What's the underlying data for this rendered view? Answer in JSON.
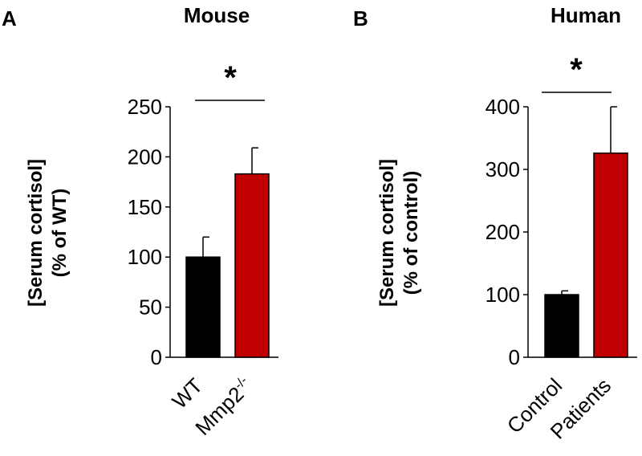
{
  "chart_data": [
    {
      "type": "bar",
      "panel": "A",
      "title": "Mouse",
      "ylabel": "[Serum cortisol]",
      "ylabel2": "(% of WT)",
      "categories": [
        "WT",
        "Mmp2-/-"
      ],
      "category_display": [
        {
          "base": "WT",
          "sup": ""
        },
        {
          "base": "Mmp2",
          "sup": "-/-"
        }
      ],
      "values": [
        100,
        183
      ],
      "errors": [
        20,
        26
      ],
      "colors": [
        "#000000",
        "#c00000"
      ],
      "ylim": [
        0,
        250
      ],
      "yticks": [
        0,
        50,
        100,
        150,
        200,
        250
      ],
      "significance": "*"
    },
    {
      "type": "bar",
      "panel": "B",
      "title": "Human",
      "ylabel": "[Serum cortisol]",
      "ylabel2": "(% of control)",
      "categories": [
        "Control",
        "Patients"
      ],
      "category_display": [
        {
          "base": "Control",
          "sup": ""
        },
        {
          "base": "Patients",
          "sup": ""
        }
      ],
      "values": [
        100,
        326
      ],
      "errors": [
        6,
        74
      ],
      "colors": [
        "#000000",
        "#c00000"
      ],
      "ylim": [
        0,
        400
      ],
      "yticks": [
        0,
        100,
        200,
        300,
        400
      ],
      "significance": "*"
    }
  ]
}
